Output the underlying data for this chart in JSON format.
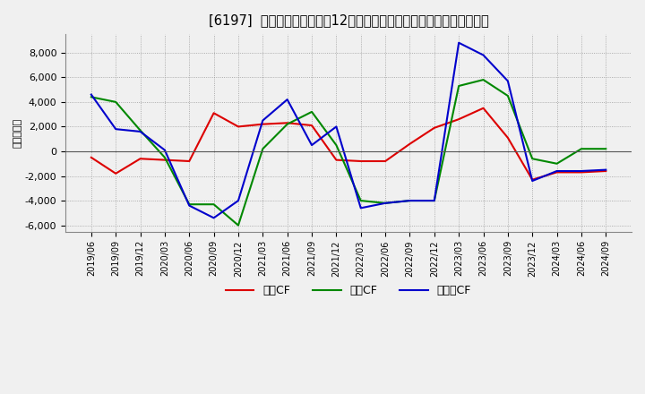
{
  "title": "[6197]  キャッシュフローの12か月移動合計の対前年同期増減額の推移",
  "ylabel": "（百万円）",
  "background_color": "#f0f0f0",
  "plot_bg_color": "#f0f0f0",
  "grid_color": "#aaaaaa",
  "ylim": [
    -6500,
    9500
  ],
  "yticks": [
    -6000,
    -4000,
    -2000,
    0,
    2000,
    4000,
    6000,
    8000
  ],
  "dates": [
    "2019/06",
    "2019/09",
    "2019/12",
    "2020/03",
    "2020/06",
    "2020/09",
    "2020/12",
    "2021/03",
    "2021/06",
    "2021/09",
    "2021/12",
    "2022/03",
    "2022/06",
    "2022/09",
    "2022/12",
    "2023/03",
    "2023/06",
    "2023/09",
    "2023/12",
    "2024/03",
    "2024/06",
    "2024/09"
  ],
  "eigyo_cf": [
    -500,
    -1800,
    -600,
    -700,
    -800,
    3100,
    2000,
    2200,
    2300,
    2100,
    -700,
    -800,
    -800,
    600,
    1900,
    2600,
    3500,
    1100,
    -2300,
    -1700,
    -1700,
    -1600
  ],
  "toshi_cf": [
    4400,
    4000,
    1700,
    -500,
    -4300,
    -4300,
    -6000,
    200,
    2200,
    3200,
    500,
    -4000,
    -4200,
    -4000,
    -4000,
    5300,
    5800,
    4500,
    -600,
    -1000,
    200,
    200
  ],
  "free_cf": [
    4600,
    1800,
    1600,
    100,
    -4400,
    -5400,
    -4000,
    2500,
    4200,
    500,
    2000,
    -4600,
    -4200,
    -4000,
    -4000,
    8800,
    7800,
    5700,
    -2400,
    -1600,
    -1600,
    -1500
  ],
  "eigyo_color": "#dd0000",
  "toshi_color": "#008800",
  "free_color": "#0000cc",
  "legend_labels": [
    "営業CF",
    "投資CF",
    "フリーCF"
  ]
}
